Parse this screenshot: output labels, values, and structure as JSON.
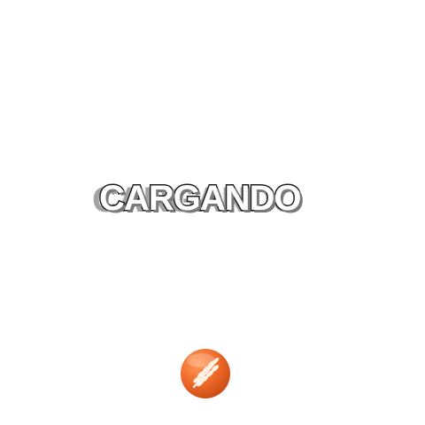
{
  "loader": {
    "label": "CARGANDO"
  },
  "logo": {
    "icon": "wheat-icon",
    "color": "#f06a2a"
  }
}
